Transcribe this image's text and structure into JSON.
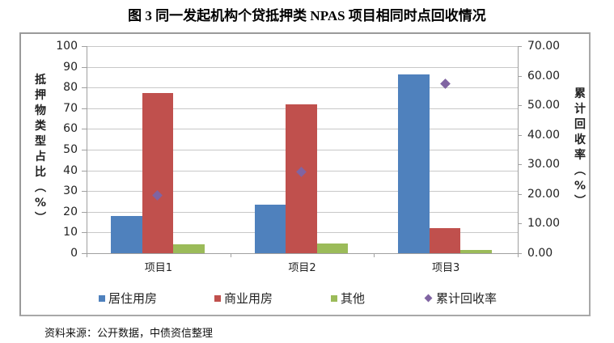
{
  "title": "图 3  同一发起机构个贷抵押类 NPAS 项目相同时点回收情况",
  "source": "资料来源：公开数据，中债资信整理",
  "colors": {
    "residential": "#4f81bd",
    "commercial": "#c0504d",
    "other": "#9bbb59",
    "recovery": "#8064a2"
  },
  "axes": {
    "left_title_chars": [
      "抵",
      "押",
      "物",
      "类",
      "型",
      "占",
      "比",
      "︵",
      "%",
      "︶"
    ],
    "right_title_chars": [
      "累",
      "计",
      "回",
      "收",
      "率",
      "︵",
      "%",
      "︶"
    ],
    "left_ticks": [
      "100",
      "90",
      "80",
      "70",
      "60",
      "50",
      "40",
      "30",
      "20",
      "10",
      "0"
    ],
    "right_ticks": [
      "70.00",
      "60.00",
      "50.00",
      "40.00",
      "30.00",
      "20.00",
      "10.00",
      "0.00"
    ]
  },
  "categories": [
    "项目1",
    "项目2",
    "项目3"
  ],
  "legend": [
    "居住用房",
    "商业用房",
    "其他",
    "累计回收率"
  ],
  "chart_data": {
    "type": "bar",
    "title": "图 3  同一发起机构个贷抵押类 NPAS 项目相同时点回收情况",
    "categories": [
      "项目1",
      "项目2",
      "项目3"
    ],
    "series": [
      {
        "name": "居住用房",
        "type": "bar",
        "axis": "left",
        "values": [
          18,
          23.5,
          86.5
        ]
      },
      {
        "name": "商业用房",
        "type": "bar",
        "axis": "left",
        "values": [
          77.5,
          72,
          12
        ]
      },
      {
        "name": "其他",
        "type": "bar",
        "axis": "left",
        "values": [
          4.3,
          4.8,
          1.7
        ]
      },
      {
        "name": "累计回收率",
        "type": "scatter",
        "axis": "right",
        "marker": "diamond",
        "values": [
          19.5,
          27.4,
          57.4
        ]
      }
    ],
    "xlabel": "",
    "ylabel": "抵押物类型占比（%）",
    "ylabel_right": "累计回收率（%）",
    "ylim": [
      0,
      100
    ],
    "ylim_right": [
      0,
      70
    ],
    "yticks": [
      0,
      10,
      20,
      30,
      40,
      50,
      60,
      70,
      80,
      90,
      100
    ],
    "yticks_right": [
      0,
      10,
      20,
      30,
      40,
      50,
      60,
      70
    ],
    "grid": true,
    "legend_position": "bottom"
  }
}
